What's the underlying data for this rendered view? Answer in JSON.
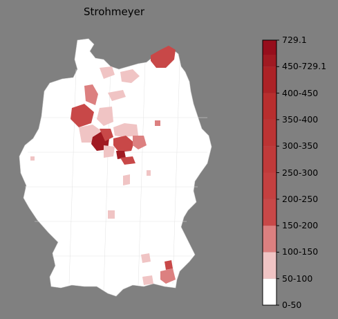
{
  "title": "Strohmeyer",
  "legend": {
    "bins": [
      {
        "label": "0-50",
        "color": "#ffffff"
      },
      {
        "label": "50-100",
        "color": "#f0c4c4"
      },
      {
        "label": "100-150",
        "color": "#dc8080"
      },
      {
        "label": "150-200",
        "color": "#c84848"
      },
      {
        "label": "200-250",
        "color": "#c44040"
      },
      {
        "label": "250-300",
        "color": "#c03a3a"
      },
      {
        "label": "300-350",
        "color": "#bc3434"
      },
      {
        "label": "350-400",
        "color": "#b82e2e"
      },
      {
        "label": "400-450",
        "color": "#ac2226"
      },
      {
        "label": "450-729.1",
        "color": "#a01a22"
      }
    ],
    "max_label": "729.1",
    "max_color": "#960e1c"
  },
  "colors": {
    "background": "#808080",
    "land": "#ffffff",
    "border": "#d8d8d8"
  }
}
